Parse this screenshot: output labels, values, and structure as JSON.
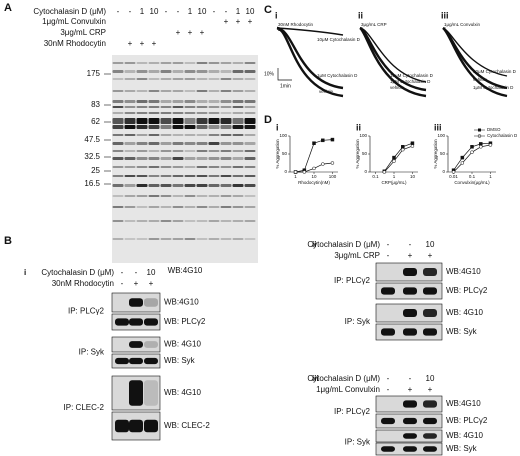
{
  "panel_a": {
    "label": "A",
    "treatments": [
      {
        "name": "Cytochalasin D (μM)",
        "lanes": [
          "-",
          "-",
          "1",
          "10",
          "-",
          "-",
          "1",
          "10",
          "-",
          "-",
          "1",
          "10"
        ]
      },
      {
        "name": "1μg/mL Convulxin",
        "lanes": [
          null,
          null,
          null,
          null,
          null,
          null,
          null,
          null,
          null,
          "+",
          "+",
          "+"
        ]
      },
      {
        "name": "3μg/mL CRP",
        "lanes": [
          null,
          null,
          null,
          null,
          null,
          "+",
          "+",
          "+",
          null,
          null,
          null,
          null
        ]
      },
      {
        "name": "30nM Rhodocytin",
        "lanes": [
          null,
          "+",
          "+",
          "+",
          null,
          null,
          null,
          null,
          null,
          null,
          null,
          null
        ]
      }
    ],
    "mw_markers": [
      175,
      83,
      62,
      47.5,
      32.5,
      25,
      16.5
    ],
    "blot_label": "WB:4G10"
  },
  "panel_b": {
    "label": "B",
    "blots": [
      {
        "sub": "i",
        "treatments": [
          {
            "name": "Cytochalasin D (μM)",
            "lanes": [
              "-",
              "-",
              "10"
            ]
          },
          {
            "name": "30nM Rhodocytin",
            "lanes": [
              "-",
              "+",
              "+"
            ]
          }
        ],
        "ips": [
          {
            "ip": "IP: PLCγ2",
            "wb": [
              "WB:4G10",
              "WB: PLCγ2"
            ]
          },
          {
            "ip": "IP: Syk",
            "wb": [
              "WB: 4G10",
              "WB: Syk"
            ]
          },
          {
            "ip": "IP: CLEC-2",
            "wb": [
              "WB: 4G10",
              "WB: CLEC-2"
            ]
          }
        ]
      },
      {
        "sub": "ii",
        "treatments": [
          {
            "name": "Cytochalasin D (μM)",
            "lanes": [
              "-",
              "-",
              "10"
            ]
          },
          {
            "name": "3μg/mL CRP",
            "lanes": [
              "-",
              "+",
              "+"
            ]
          }
        ],
        "ips": [
          {
            "ip": "IP: PLCγ2",
            "wb": [
              "WB:4G10",
              "WB: PLCγ2"
            ]
          },
          {
            "ip": "IP: Syk",
            "wb": [
              "WB: 4G10",
              "WB: Syk"
            ]
          }
        ]
      },
      {
        "sub": "iii",
        "treatments": [
          {
            "name": "Cytochalasin D (μM)",
            "lanes": [
              "-",
              "-",
              "10"
            ]
          },
          {
            "name": "1μg/mL Convulxin",
            "lanes": [
              "-",
              "+",
              "+"
            ]
          }
        ],
        "ips": [
          {
            "ip": "IP: PLCγ2",
            "wb": [
              "WB:4G10",
              "WB: PLCγ2"
            ]
          },
          {
            "ip": "IP: Syk",
            "wb": [
              "WB: 4G10",
              "WB: Syk"
            ]
          }
        ]
      }
    ]
  },
  "panel_c": {
    "label": "C",
    "scale_y": "10%",
    "scale_x": "1min",
    "plots": [
      {
        "sub": "i",
        "agonist": "30nM Rhodocytin",
        "traces": [
          "10μM Cytochalasin D",
          "1μM Cytochalasin D",
          "vehicle"
        ]
      },
      {
        "sub": "ii",
        "agonist": "3μg/mL CRP",
        "traces": [
          "10μM Cytochalasin D",
          "1μM Cytochalasin D",
          "vehicle"
        ]
      },
      {
        "sub": "iii",
        "agonist": "1μg/mL Convulxin",
        "traces": [
          "10μM Cytochalasin D",
          "vehicle",
          "1μM Cytochalasin D"
        ]
      }
    ]
  },
  "panel_d": {
    "label": "D",
    "legend": [
      "DMSO",
      "Cytochalasin D"
    ],
    "charts": [
      {
        "sub": "i",
        "type": "line",
        "x_label": "Rhodocytin(nM)",
        "y_label": "% Aggregation",
        "log_x": true,
        "x": [
          1,
          3,
          10,
          30,
          100
        ],
        "xlim": [
          0.5,
          200
        ],
        "xticks": [
          1,
          10,
          100
        ],
        "ylim": [
          0,
          100
        ],
        "yticks": [
          0,
          50,
          100
        ],
        "series": [
          {
            "values": [
              0,
              5,
              80,
              88,
              90
            ]
          },
          {
            "values": [
              0,
              0,
              10,
              22,
              25
            ]
          }
        ]
      },
      {
        "sub": "ii",
        "type": "line",
        "x_label": "CRP(μg/mL)",
        "y_label": "% Aggregation",
        "log_x": true,
        "x": [
          0.3,
          1,
          3,
          10
        ],
        "xlim": [
          0.05,
          20
        ],
        "xticks": [
          0.1,
          1,
          10
        ],
        "ylim": [
          0,
          100
        ],
        "yticks": [
          0,
          50,
          100
        ],
        "series": [
          {
            "values": [
              2,
              40,
              70,
              80
            ]
          },
          {
            "values": [
              0,
              30,
              62,
              72
            ]
          }
        ]
      },
      {
        "sub": "iii",
        "type": "line",
        "x_label": "Convulxin(μg/mL)",
        "y_label": "% Aggregation",
        "log_x": true,
        "x": [
          0.01,
          0.03,
          0.1,
          0.3,
          1
        ],
        "xlim": [
          0.005,
          2
        ],
        "xticks": [
          0.01,
          0.1,
          1
        ],
        "ylim": [
          0,
          100
        ],
        "yticks": [
          0,
          50,
          100
        ],
        "series": [
          {
            "values": [
              5,
              40,
              70,
              78,
              80
            ]
          },
          {
            "values": [
              0,
              25,
              55,
              70,
              75
            ]
          }
        ]
      }
    ]
  }
}
